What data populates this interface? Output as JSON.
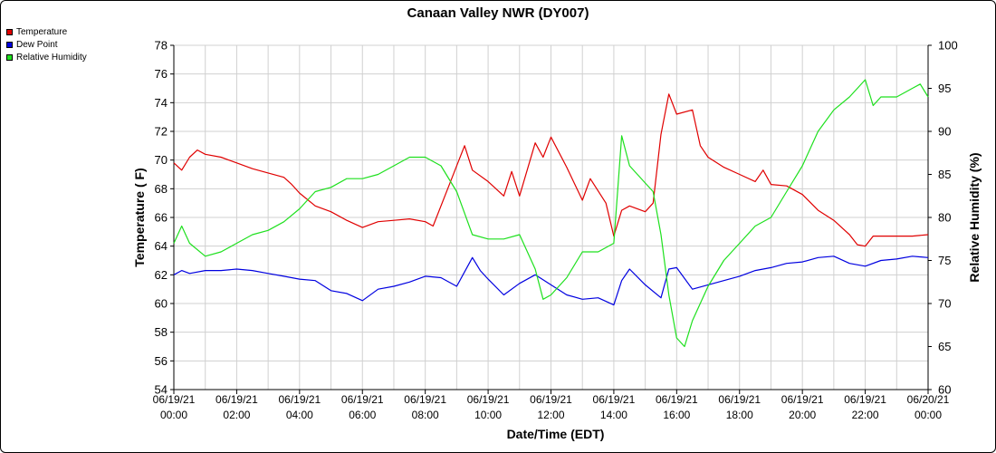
{
  "chart_data": {
    "type": "line",
    "title": "Canaan Valley NWR (DY007)",
    "xlabel": "Date/Time (EDT)",
    "ylabel_left": "Temperature ( F)",
    "ylabel_right": "Relative Humidity (%)",
    "ylim_left": [
      54,
      78
    ],
    "yticks_left": [
      "54",
      "56",
      "58",
      "60",
      "62",
      "64",
      "66",
      "68",
      "70",
      "72",
      "74",
      "76",
      "78"
    ],
    "ylim_right": [
      60,
      100
    ],
    "yticks_right": [
      "60",
      "65",
      "70",
      "75",
      "80",
      "85",
      "90",
      "95",
      "100"
    ],
    "xlim_hours": [
      0,
      24
    ],
    "x_tick_hours": [
      0,
      2,
      4,
      6,
      8,
      10,
      12,
      14,
      16,
      18,
      20,
      22,
      24
    ],
    "x_tick_dates": [
      "06/19/21",
      "06/19/21",
      "06/19/21",
      "06/19/21",
      "06/19/21",
      "06/19/21",
      "06/19/21",
      "06/19/21",
      "06/19/21",
      "06/19/21",
      "06/19/21",
      "06/19/21",
      "06/20/21"
    ],
    "x_tick_times": [
      "00:00",
      "02:00",
      "04:00",
      "06:00",
      "08:00",
      "10:00",
      "12:00",
      "14:00",
      "16:00",
      "18:00",
      "20:00",
      "22:00",
      "00:00"
    ],
    "grid": true,
    "legend_position": "top-left",
    "series": [
      {
        "name": "Temperature",
        "color": "#e00000",
        "axis": "left",
        "points": [
          [
            0.0,
            69.8
          ],
          [
            0.25,
            69.3
          ],
          [
            0.5,
            70.2
          ],
          [
            0.75,
            70.7
          ],
          [
            1.0,
            70.4
          ],
          [
            1.5,
            70.2
          ],
          [
            2.0,
            69.8
          ],
          [
            2.5,
            69.4
          ],
          [
            3.0,
            69.1
          ],
          [
            3.5,
            68.8
          ],
          [
            3.75,
            68.3
          ],
          [
            4.0,
            67.7
          ],
          [
            4.5,
            66.8
          ],
          [
            5.0,
            66.4
          ],
          [
            5.5,
            65.8
          ],
          [
            6.0,
            65.3
          ],
          [
            6.5,
            65.7
          ],
          [
            7.0,
            65.8
          ],
          [
            7.5,
            65.9
          ],
          [
            8.0,
            65.7
          ],
          [
            8.25,
            65.4
          ],
          [
            8.75,
            68.2
          ],
          [
            9.25,
            71.0
          ],
          [
            9.5,
            69.3
          ],
          [
            10.0,
            68.5
          ],
          [
            10.5,
            67.5
          ],
          [
            10.75,
            69.2
          ],
          [
            11.0,
            67.5
          ],
          [
            11.5,
            71.2
          ],
          [
            11.75,
            70.2
          ],
          [
            12.0,
            71.6
          ],
          [
            12.5,
            69.5
          ],
          [
            13.0,
            67.2
          ],
          [
            13.25,
            68.7
          ],
          [
            13.75,
            67.0
          ],
          [
            14.0,
            64.7
          ],
          [
            14.25,
            66.5
          ],
          [
            14.5,
            66.8
          ],
          [
            15.0,
            66.4
          ],
          [
            15.25,
            67.0
          ],
          [
            15.5,
            71.8
          ],
          [
            15.75,
            74.6
          ],
          [
            16.0,
            73.2
          ],
          [
            16.5,
            73.5
          ],
          [
            16.75,
            71.0
          ],
          [
            17.0,
            70.2
          ],
          [
            17.5,
            69.5
          ],
          [
            18.0,
            69.0
          ],
          [
            18.5,
            68.5
          ],
          [
            18.75,
            69.3
          ],
          [
            19.0,
            68.3
          ],
          [
            19.5,
            68.2
          ],
          [
            20.0,
            67.6
          ],
          [
            20.5,
            66.5
          ],
          [
            21.0,
            65.8
          ],
          [
            21.5,
            64.8
          ],
          [
            21.75,
            64.1
          ],
          [
            22.0,
            64.0
          ],
          [
            22.25,
            64.7
          ],
          [
            22.5,
            64.7
          ],
          [
            23.0,
            64.7
          ],
          [
            23.5,
            64.7
          ],
          [
            24.0,
            64.8
          ]
        ]
      },
      {
        "name": "Dew Point",
        "color": "#0000e0",
        "axis": "left",
        "points": [
          [
            0.0,
            62.0
          ],
          [
            0.25,
            62.3
          ],
          [
            0.5,
            62.1
          ],
          [
            1.0,
            62.3
          ],
          [
            1.5,
            62.3
          ],
          [
            2.0,
            62.4
          ],
          [
            2.5,
            62.3
          ],
          [
            3.0,
            62.1
          ],
          [
            3.5,
            61.9
          ],
          [
            4.0,
            61.7
          ],
          [
            4.5,
            61.6
          ],
          [
            5.0,
            60.9
          ],
          [
            5.5,
            60.7
          ],
          [
            6.0,
            60.2
          ],
          [
            6.5,
            61.0
          ],
          [
            7.0,
            61.2
          ],
          [
            7.5,
            61.5
          ],
          [
            8.0,
            61.9
          ],
          [
            8.5,
            61.8
          ],
          [
            9.0,
            61.2
          ],
          [
            9.5,
            63.2
          ],
          [
            9.75,
            62.3
          ],
          [
            10.0,
            61.7
          ],
          [
            10.5,
            60.6
          ],
          [
            11.0,
            61.4
          ],
          [
            11.5,
            62.0
          ],
          [
            12.0,
            61.3
          ],
          [
            12.5,
            60.6
          ],
          [
            13.0,
            60.3
          ],
          [
            13.5,
            60.4
          ],
          [
            14.0,
            59.9
          ],
          [
            14.25,
            61.6
          ],
          [
            14.5,
            62.4
          ],
          [
            15.0,
            61.3
          ],
          [
            15.5,
            60.4
          ],
          [
            15.75,
            62.4
          ],
          [
            16.0,
            62.5
          ],
          [
            16.5,
            61.0
          ],
          [
            17.0,
            61.3
          ],
          [
            17.5,
            61.6
          ],
          [
            18.0,
            61.9
          ],
          [
            18.5,
            62.3
          ],
          [
            19.0,
            62.5
          ],
          [
            19.5,
            62.8
          ],
          [
            20.0,
            62.9
          ],
          [
            20.5,
            63.2
          ],
          [
            21.0,
            63.3
          ],
          [
            21.5,
            62.8
          ],
          [
            22.0,
            62.6
          ],
          [
            22.5,
            63.0
          ],
          [
            23.0,
            63.1
          ],
          [
            23.5,
            63.3
          ],
          [
            24.0,
            63.2
          ]
        ]
      },
      {
        "name": "Relative Humidity",
        "color": "#1ee01e",
        "axis": "right",
        "points": [
          [
            0.0,
            77.0
          ],
          [
            0.25,
            79.0
          ],
          [
            0.5,
            77.0
          ],
          [
            1.0,
            75.5
          ],
          [
            1.5,
            76.0
          ],
          [
            2.0,
            77.0
          ],
          [
            2.5,
            78.0
          ],
          [
            3.0,
            78.5
          ],
          [
            3.5,
            79.5
          ],
          [
            4.0,
            81.0
          ],
          [
            4.5,
            83.0
          ],
          [
            5.0,
            83.5
          ],
          [
            5.5,
            84.5
          ],
          [
            6.0,
            84.5
          ],
          [
            6.5,
            85.0
          ],
          [
            7.0,
            86.0
          ],
          [
            7.5,
            87.0
          ],
          [
            8.0,
            87.0
          ],
          [
            8.5,
            86.0
          ],
          [
            9.0,
            83.0
          ],
          [
            9.5,
            78.0
          ],
          [
            10.0,
            77.5
          ],
          [
            10.5,
            77.5
          ],
          [
            11.0,
            78.0
          ],
          [
            11.5,
            74.0
          ],
          [
            11.75,
            70.5
          ],
          [
            12.0,
            71.0
          ],
          [
            12.5,
            73.0
          ],
          [
            13.0,
            76.0
          ],
          [
            13.5,
            76.0
          ],
          [
            14.0,
            77.0
          ],
          [
            14.25,
            89.5
          ],
          [
            14.5,
            86.0
          ],
          [
            15.0,
            84.0
          ],
          [
            15.25,
            83.0
          ],
          [
            15.5,
            78.0
          ],
          [
            15.75,
            71.0
          ],
          [
            16.0,
            66.0
          ],
          [
            16.25,
            65.0
          ],
          [
            16.5,
            68.0
          ],
          [
            17.0,
            72.0
          ],
          [
            17.5,
            75.0
          ],
          [
            18.0,
            77.0
          ],
          [
            18.5,
            79.0
          ],
          [
            19.0,
            80.0
          ],
          [
            19.5,
            83.0
          ],
          [
            20.0,
            86.0
          ],
          [
            20.5,
            90.0
          ],
          [
            21.0,
            92.5
          ],
          [
            21.5,
            94.0
          ],
          [
            22.0,
            96.0
          ],
          [
            22.25,
            93.0
          ],
          [
            22.5,
            94.0
          ],
          [
            23.0,
            94.0
          ],
          [
            23.5,
            95.0
          ],
          [
            23.75,
            95.5
          ],
          [
            24.0,
            94.0
          ]
        ]
      }
    ]
  }
}
